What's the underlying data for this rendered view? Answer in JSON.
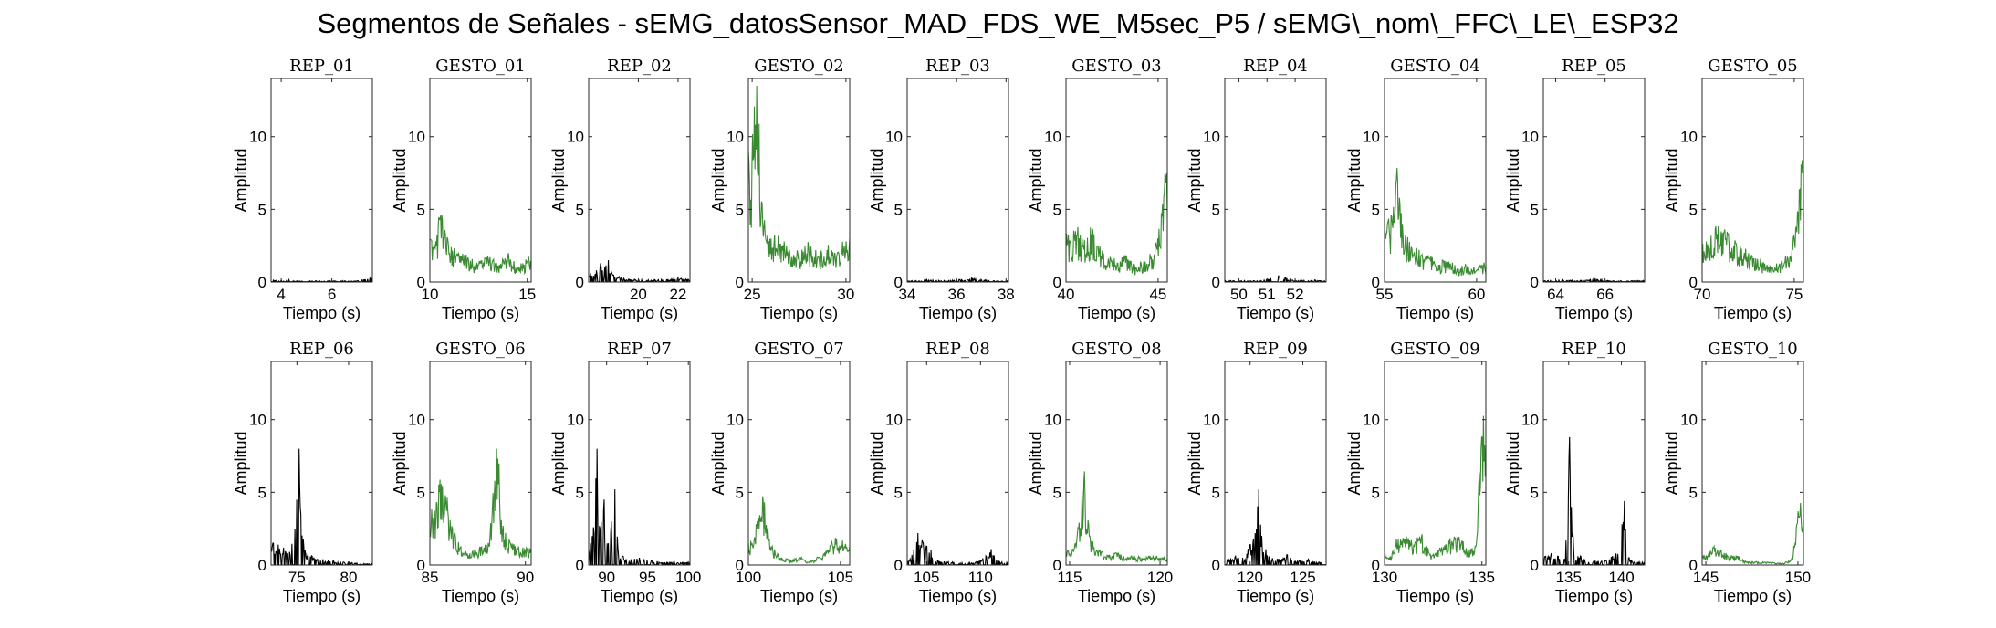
{
  "suptitle": "Segmentos de Señales - sEMG_datosSensor_MAD_FDS_WE_M5sec_P5 / sEMG\\_nom\\_FFC\\_LE\\_ESP32",
  "colors": {
    "rep": "#000000",
    "gesto": "#3a8a32",
    "axis": "#262626"
  },
  "chart_data": {
    "type": "line",
    "shared": {
      "xlabel": "Tiempo (s)",
      "ylabel": "Amplitud",
      "ylim": [
        0,
        14
      ],
      "yticks": [
        0,
        5,
        10
      ],
      "grid": false
    },
    "panels": [
      {
        "title": "REP_01",
        "kind": "rep",
        "xlim": [
          3.6,
          7.6
        ],
        "xticks": [
          4,
          6
        ],
        "peaks": [
          [
            3.7,
            0.12
          ],
          [
            4.0,
            0.1
          ],
          [
            4.3,
            0.15
          ],
          [
            4.5,
            0.08
          ],
          [
            5.9,
            0.1
          ],
          [
            7.0,
            0.08
          ],
          [
            7.5,
            0.3
          ]
        ]
      },
      {
        "title": "GESTO_01",
        "kind": "gesto",
        "xlim": [
          10,
          15.2
        ],
        "xticks": [
          10,
          15
        ],
        "peaks": [
          [
            10.3,
            2.8
          ],
          [
            10.5,
            4.3
          ],
          [
            10.8,
            3.3
          ],
          [
            11.1,
            2.4
          ],
          [
            11.5,
            1.8
          ],
          [
            12.0,
            1.5
          ],
          [
            12.5,
            1.2
          ],
          [
            13.0,
            1.6
          ],
          [
            13.5,
            1.1
          ],
          [
            14.0,
            1.8
          ],
          [
            14.5,
            1.0
          ],
          [
            15.0,
            1.4
          ]
        ]
      },
      {
        "title": "REP_02",
        "kind": "rep",
        "xlim": [
          17.5,
          22.6
        ],
        "xticks": [
          20,
          22
        ],
        "peaks": [
          [
            17.6,
            0.6
          ],
          [
            17.9,
            0.8
          ],
          [
            18.1,
            1.3
          ],
          [
            18.3,
            1.0
          ],
          [
            18.5,
            1.5
          ],
          [
            18.7,
            0.5
          ],
          [
            19.5,
            0.2
          ],
          [
            20.5,
            0.15
          ],
          [
            21.5,
            0.2
          ],
          [
            22.0,
            0.3
          ],
          [
            22.4,
            0.2
          ]
        ]
      },
      {
        "title": "GESTO_02",
        "kind": "gesto",
        "xlim": [
          24.8,
          30.2
        ],
        "xticks": [
          25,
          30
        ],
        "peaks": [
          [
            25.0,
            8.0
          ],
          [
            25.25,
            13.5
          ],
          [
            25.5,
            5.5
          ],
          [
            25.7,
            3.3
          ],
          [
            26.0,
            3.0
          ],
          [
            26.5,
            2.6
          ],
          [
            27.0,
            2.2
          ],
          [
            27.5,
            1.9
          ],
          [
            28.0,
            2.4
          ],
          [
            28.5,
            1.7
          ],
          [
            29.0,
            2.2
          ],
          [
            29.5,
            1.7
          ],
          [
            30.0,
            2.8
          ]
        ]
      },
      {
        "title": "REP_03",
        "kind": "rep",
        "xlim": [
          34,
          38.1
        ],
        "xticks": [
          34,
          36,
          38
        ],
        "peaks": [
          [
            34.2,
            0.1
          ],
          [
            34.8,
            0.15
          ],
          [
            35.5,
            0.1
          ],
          [
            36.2,
            0.2
          ],
          [
            36.6,
            0.3
          ],
          [
            37.3,
            0.1
          ]
        ]
      },
      {
        "title": "GESTO_03",
        "kind": "gesto",
        "xlim": [
          40,
          45.5
        ],
        "xticks": [
          40,
          45
        ],
        "peaks": [
          [
            40.2,
            2.8
          ],
          [
            40.6,
            3.2
          ],
          [
            41.0,
            2.9
          ],
          [
            41.4,
            3.3
          ],
          [
            41.8,
            2.2
          ],
          [
            42.3,
            1.6
          ],
          [
            42.8,
            1.3
          ],
          [
            43.3,
            1.6
          ],
          [
            43.8,
            1.0
          ],
          [
            44.3,
            1.4
          ],
          [
            44.8,
            1.9
          ],
          [
            45.2,
            4.5
          ],
          [
            45.4,
            7.3
          ]
        ]
      },
      {
        "title": "REP_04",
        "kind": "rep",
        "xlim": [
          49.5,
          53.1
        ],
        "xticks": [
          50,
          51,
          52
        ],
        "peaks": [
          [
            49.7,
            0.1
          ],
          [
            50.2,
            0.1
          ],
          [
            50.8,
            0.1
          ],
          [
            51.4,
            0.45
          ],
          [
            52.0,
            0.1
          ],
          [
            52.7,
            0.15
          ]
        ]
      },
      {
        "title": "GESTO_04",
        "kind": "gesto",
        "xlim": [
          55,
          60.5
        ],
        "xticks": [
          55,
          60
        ],
        "peaks": [
          [
            55.1,
            3.3
          ],
          [
            55.4,
            4.5
          ],
          [
            55.7,
            7.0
          ],
          [
            56.0,
            3.2
          ],
          [
            56.5,
            2.3
          ],
          [
            57.0,
            1.8
          ],
          [
            57.5,
            1.5
          ],
          [
            58.0,
            1.2
          ],
          [
            58.5,
            1.4
          ],
          [
            59.0,
            0.9
          ],
          [
            59.5,
            1.1
          ],
          [
            60.0,
            0.8
          ],
          [
            60.3,
            1.2
          ]
        ]
      },
      {
        "title": "REP_05",
        "kind": "rep",
        "xlim": [
          63.5,
          67.6
        ],
        "xticks": [
          64,
          66
        ],
        "peaks": [
          [
            63.7,
            0.1
          ],
          [
            64.3,
            0.15
          ],
          [
            65.0,
            0.1
          ],
          [
            65.6,
            0.25
          ],
          [
            66.1,
            0.1
          ],
          [
            67.2,
            0.1
          ]
        ]
      },
      {
        "title": "GESTO_05",
        "kind": "gesto",
        "xlim": [
          70,
          75.5
        ],
        "xticks": [
          70,
          75
        ],
        "peaks": [
          [
            70.3,
            2.6
          ],
          [
            70.8,
            3.3
          ],
          [
            71.3,
            3.0
          ],
          [
            71.8,
            2.7
          ],
          [
            72.3,
            2.0
          ],
          [
            72.8,
            1.6
          ],
          [
            73.3,
            1.3
          ],
          [
            73.8,
            1.0
          ],
          [
            74.3,
            1.4
          ],
          [
            74.8,
            1.8
          ],
          [
            75.1,
            3.8
          ],
          [
            75.4,
            7.5
          ]
        ]
      },
      {
        "title": "REP_06",
        "kind": "rep",
        "xlim": [
          72.5,
          82.3
        ],
        "xticks": [
          75,
          80
        ],
        "peaks": [
          [
            72.7,
            1.5
          ],
          [
            73.2,
            1.4
          ],
          [
            73.7,
            1.2
          ],
          [
            74.3,
            0.9
          ],
          [
            74.8,
            2.5
          ],
          [
            75.0,
            4.5
          ],
          [
            75.2,
            8.0
          ],
          [
            75.4,
            3.5
          ],
          [
            75.8,
            1.0
          ],
          [
            76.5,
            0.6
          ],
          [
            77.5,
            0.4
          ],
          [
            78.5,
            0.3
          ],
          [
            79.5,
            0.2
          ],
          [
            81.5,
            0.1
          ]
        ]
      },
      {
        "title": "GESTO_06",
        "kind": "gesto",
        "xlim": [
          85,
          90.3
        ],
        "xticks": [
          85,
          90
        ],
        "peaks": [
          [
            85.2,
            3.2
          ],
          [
            85.5,
            5.0
          ],
          [
            85.8,
            4.8
          ],
          [
            86.1,
            2.4
          ],
          [
            86.6,
            1.2
          ],
          [
            87.1,
            0.8
          ],
          [
            87.6,
            1.1
          ],
          [
            88.1,
            1.3
          ],
          [
            88.5,
            8.0
          ],
          [
            88.8,
            2.4
          ],
          [
            89.2,
            1.5
          ],
          [
            89.6,
            1.1
          ],
          [
            90.0,
            1.0
          ]
        ]
      },
      {
        "title": "REP_07",
        "kind": "rep",
        "xlim": [
          87.8,
          100.2
        ],
        "xticks": [
          90,
          95,
          100
        ],
        "peaks": [
          [
            88.0,
            1.5
          ],
          [
            88.4,
            2.6
          ],
          [
            88.8,
            8.0
          ],
          [
            89.2,
            2.5
          ],
          [
            89.7,
            4.5
          ],
          [
            90.2,
            1.5
          ],
          [
            90.6,
            3.0
          ],
          [
            91.0,
            5.2
          ],
          [
            91.4,
            1.2
          ],
          [
            92.0,
            0.6
          ],
          [
            93.0,
            0.4
          ],
          [
            94.0,
            0.5
          ],
          [
            95.5,
            0.3
          ],
          [
            97.5,
            0.2
          ]
        ]
      },
      {
        "title": "GESTO_07",
        "kind": "gesto",
        "xlim": [
          100,
          105.5
        ],
        "xticks": [
          100,
          105
        ],
        "peaks": [
          [
            100.2,
            1.5
          ],
          [
            100.5,
            3.0
          ],
          [
            100.8,
            4.3
          ],
          [
            101.2,
            1.2
          ],
          [
            101.8,
            0.5
          ],
          [
            102.3,
            0.3
          ],
          [
            102.8,
            0.5
          ],
          [
            103.3,
            0.2
          ],
          [
            103.8,
            0.5
          ],
          [
            104.3,
            1.0
          ],
          [
            104.8,
            1.8
          ],
          [
            105.2,
            1.3
          ]
        ]
      },
      {
        "title": "REP_08",
        "kind": "rep",
        "xlim": [
          103.2,
          112.6
        ],
        "xticks": [
          105,
          110
        ],
        "peaks": [
          [
            103.4,
            0.3
          ],
          [
            103.8,
            1.0
          ],
          [
            104.2,
            2.2
          ],
          [
            104.6,
            1.7
          ],
          [
            105.0,
            1.3
          ],
          [
            105.4,
            1.0
          ],
          [
            106.0,
            0.3
          ],
          [
            107.5,
            0.2
          ],
          [
            109.0,
            0.15
          ],
          [
            110.0,
            0.3
          ],
          [
            111.0,
            1.1
          ],
          [
            112.0,
            0.2
          ]
        ]
      },
      {
        "title": "GESTO_08",
        "kind": "gesto",
        "xlim": [
          114.8,
          120.4
        ],
        "xticks": [
          115,
          120
        ],
        "peaks": [
          [
            115.2,
            1.0
          ],
          [
            115.5,
            2.5
          ],
          [
            115.8,
            5.7
          ],
          [
            116.1,
            2.0
          ],
          [
            116.6,
            1.0
          ],
          [
            117.1,
            0.6
          ],
          [
            117.6,
            0.8
          ],
          [
            118.1,
            0.4
          ],
          [
            118.6,
            0.6
          ],
          [
            119.1,
            0.4
          ],
          [
            119.6,
            0.6
          ],
          [
            120.1,
            0.5
          ]
        ]
      },
      {
        "title": "REP_09",
        "kind": "rep",
        "xlim": [
          117.6,
          127.2
        ],
        "xticks": [
          120,
          125
        ],
        "peaks": [
          [
            117.9,
            0.4
          ],
          [
            118.6,
            0.6
          ],
          [
            119.3,
            0.5
          ],
          [
            120.0,
            1.4
          ],
          [
            120.5,
            2.2
          ],
          [
            120.8,
            5.2
          ],
          [
            121.1,
            2.0
          ],
          [
            121.8,
            0.6
          ],
          [
            122.6,
            0.4
          ],
          [
            123.5,
            0.7
          ],
          [
            124.5,
            0.3
          ],
          [
            125.5,
            0.4
          ],
          [
            126.5,
            0.2
          ]
        ]
      },
      {
        "title": "GESTO_09",
        "kind": "gesto",
        "xlim": [
          130,
          135.2
        ],
        "xticks": [
          130,
          135
        ],
        "peaks": [
          [
            130.3,
            0.6
          ],
          [
            130.7,
            1.8
          ],
          [
            131.1,
            1.9
          ],
          [
            131.5,
            1.4
          ],
          [
            131.9,
            1.9
          ],
          [
            132.3,
            0.8
          ],
          [
            132.8,
            1.0
          ],
          [
            133.3,
            1.6
          ],
          [
            133.8,
            1.7
          ],
          [
            134.3,
            1.0
          ],
          [
            134.7,
            1.4
          ],
          [
            135.0,
            8.8
          ]
        ]
      },
      {
        "title": "REP_10",
        "kind": "rep",
        "xlim": [
          132.6,
          142.2
        ],
        "xticks": [
          135,
          140
        ],
        "peaks": [
          [
            132.8,
            0.6
          ],
          [
            133.4,
            0.8
          ],
          [
            134.0,
            0.6
          ],
          [
            134.6,
            0.4
          ],
          [
            135.1,
            8.8
          ],
          [
            135.5,
            1.0
          ],
          [
            136.5,
            0.4
          ],
          [
            137.5,
            0.3
          ],
          [
            138.5,
            0.3
          ],
          [
            139.5,
            0.8
          ],
          [
            140.3,
            4.4
          ],
          [
            140.7,
            0.5
          ],
          [
            141.5,
            0.2
          ]
        ]
      },
      {
        "title": "GESTO_10",
        "kind": "gesto",
        "xlim": [
          144.8,
          150.3
        ],
        "xticks": [
          145,
          150
        ],
        "peaks": [
          [
            145.1,
            0.6
          ],
          [
            145.4,
            1.2
          ],
          [
            145.8,
            1.0
          ],
          [
            146.2,
            0.6
          ],
          [
            146.7,
            0.6
          ],
          [
            147.2,
            0.2
          ],
          [
            147.7,
            0.2
          ],
          [
            148.2,
            0.2
          ],
          [
            148.7,
            0.15
          ],
          [
            149.2,
            0.1
          ],
          [
            149.7,
            0.4
          ],
          [
            150.0,
            3.7
          ]
        ]
      }
    ]
  }
}
